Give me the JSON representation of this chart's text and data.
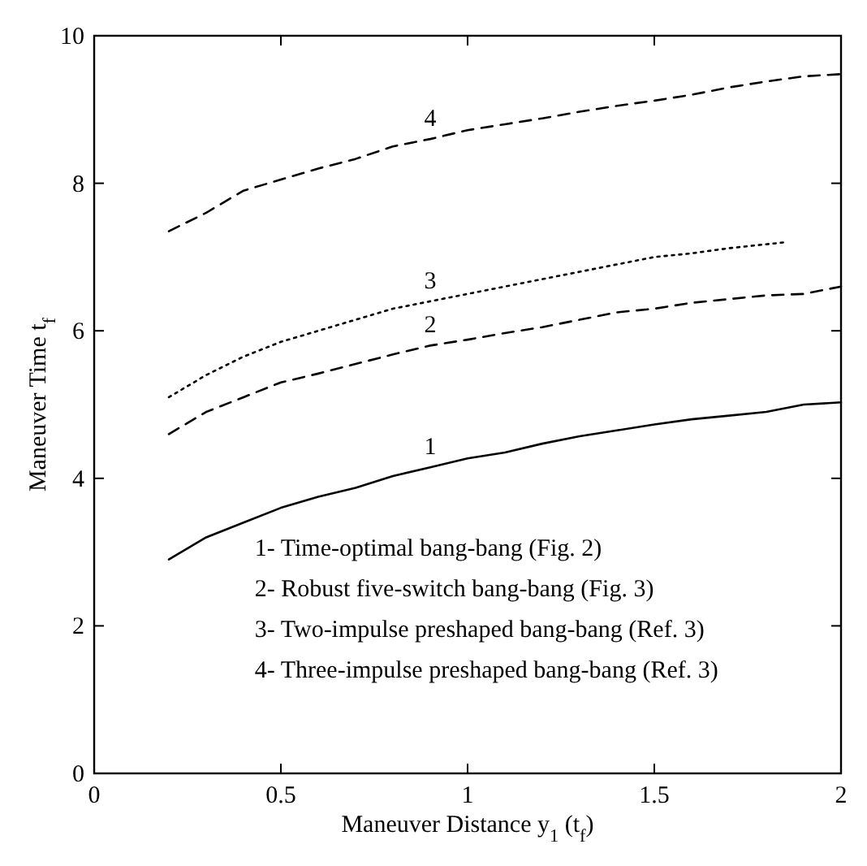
{
  "chart_data": {
    "type": "line",
    "xlabel": "Maneuver Distance y$_{1}$ (t$_{f}$)",
    "ylabel": "Maneuver Time t$_{f}$",
    "xlim": [
      0,
      2
    ],
    "ylim": [
      0,
      10
    ],
    "xticks": [
      0,
      0.5,
      1,
      1.5,
      2
    ],
    "yticks": [
      0,
      2,
      4,
      6,
      8,
      10
    ],
    "grid": false,
    "annotations": [
      "1- Time-optimal bang-bang  (Fig. 2)",
      "2- Robust five-switch bang-bang  (Fig. 3)",
      "3- Two-impulse preshaped bang-bang (Ref. 3)",
      "4- Three-impulse preshaped bang-bang (Ref. 3)"
    ],
    "x": [
      0.2,
      0.3,
      0.4,
      0.5,
      0.6,
      0.7,
      0.8,
      0.9,
      1.0,
      1.1,
      1.2,
      1.3,
      1.4,
      1.5,
      1.6,
      1.7,
      1.8,
      1.9,
      2.0
    ],
    "series": [
      {
        "name": "1",
        "color": "#000000",
        "line_style": "solid",
        "values": [
          2.9,
          3.2,
          3.4,
          3.6,
          3.75,
          3.87,
          4.03,
          4.15,
          4.27,
          4.35,
          4.47,
          4.57,
          4.65,
          4.73,
          4.8,
          4.85,
          4.9,
          5.0,
          5.03
        ]
      },
      {
        "name": "2",
        "color": "#000000",
        "line_style": "dashed",
        "values": [
          4.6,
          4.9,
          5.1,
          5.3,
          5.42,
          5.55,
          5.68,
          5.8,
          5.88,
          5.97,
          6.05,
          6.15,
          6.25,
          6.3,
          6.38,
          6.43,
          6.48,
          6.5,
          6.6
        ]
      },
      {
        "name": "3",
        "color": "#000000",
        "line_style": "dotted",
        "x": [
          0.2,
          0.3,
          0.4,
          0.5,
          0.6,
          0.7,
          0.8,
          0.9,
          1.0,
          1.1,
          1.2,
          1.3,
          1.4,
          1.5,
          1.6,
          1.7,
          1.85
        ],
        "values": [
          5.1,
          5.4,
          5.65,
          5.85,
          6.0,
          6.15,
          6.3,
          6.4,
          6.5,
          6.6,
          6.7,
          6.8,
          6.9,
          7.0,
          7.05,
          7.12,
          7.2
        ]
      },
      {
        "name": "4",
        "color": "#000000",
        "line_style": "dashed",
        "values": [
          7.35,
          7.6,
          7.9,
          8.05,
          8.2,
          8.33,
          8.5,
          8.6,
          8.72,
          8.8,
          8.88,
          8.97,
          9.05,
          9.12,
          9.2,
          9.3,
          9.38,
          9.45,
          9.48
        ]
      }
    ]
  }
}
